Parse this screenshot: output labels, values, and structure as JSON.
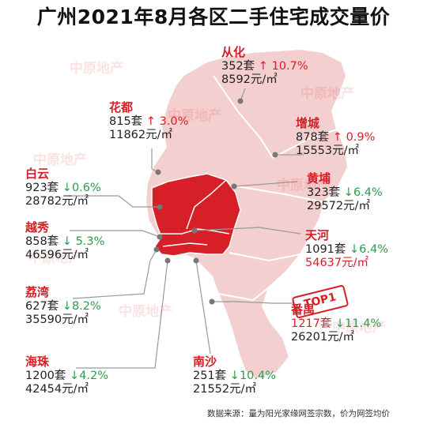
{
  "title": "广州2021年8月各区二手住宅成交量价",
  "watermark": "中原地产",
  "source_note": "数据来源：量为阳光家缘网签宗数，价为网签均价",
  "stamp": "TOP1",
  "colors": {
    "highlight": "#d61f26",
    "up": "#d61f26",
    "down": "#2e9b4a",
    "map_light": "#f4cfcf"
  },
  "districts": [
    {
      "id": "conghua",
      "name": "从化",
      "volume": "352套",
      "arrow": "↑",
      "change": "10.7%",
      "price": "8592元/㎡",
      "direction": "up"
    },
    {
      "id": "huadu",
      "name": "花都",
      "volume": "815套",
      "arrow": "↑",
      "change": "3.0%",
      "price": "11862元/㎡",
      "direction": "up"
    },
    {
      "id": "zengcheng",
      "name": "增城",
      "volume": "878套",
      "arrow": "↑",
      "change": "0.9%",
      "price": "15553元/㎡",
      "direction": "up"
    },
    {
      "id": "baiyun",
      "name": "白云",
      "volume": "923套",
      "arrow": "↓",
      "change": "0.6%",
      "price": "28782元/㎡",
      "direction": "down"
    },
    {
      "id": "huangpu",
      "name": "黄埔",
      "volume": "323套",
      "arrow": "↓",
      "change": "6.4%",
      "price": "29572元/㎡",
      "direction": "down"
    },
    {
      "id": "yuexiu",
      "name": "越秀",
      "volume": "858套",
      "arrow": "↓",
      "change": "5.3%",
      "price": "46596元/㎡",
      "direction": "down"
    },
    {
      "id": "tianhe",
      "name": "天河",
      "volume": "1091套",
      "arrow": "↓",
      "change": "6.4%",
      "price": "54637元/㎡",
      "direction": "down"
    },
    {
      "id": "liwan",
      "name": "荔湾",
      "volume": "627套",
      "arrow": "↓",
      "change": "8.2%",
      "price": "35590元/㎡",
      "direction": "down"
    },
    {
      "id": "panyu",
      "name": "番禺",
      "volume": "1217套",
      "arrow": "↓",
      "change": "11.4%",
      "price": "26201元/㎡",
      "direction": "down"
    },
    {
      "id": "haizhu",
      "name": "海珠",
      "volume": "1200套",
      "arrow": "↓",
      "change": "4.2%",
      "price": "42454元/㎡",
      "direction": "down"
    },
    {
      "id": "nansha",
      "name": "南沙",
      "volume": "251套",
      "arrow": "↓",
      "change": "10.4%",
      "price": "21552元/㎡",
      "direction": "down"
    }
  ]
}
